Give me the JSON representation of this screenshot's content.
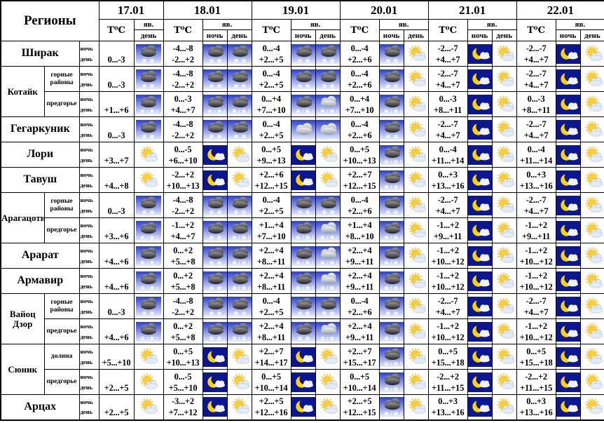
{
  "table": {
    "corner_label": "Регионы",
    "temp_label": "Т⁰С",
    "phenomena_label": "яв.",
    "night_label": "ночь",
    "day_label": "день",
    "colors": {
      "icon_sky_blue_top": "#2a3fd4",
      "icon_sky_blue_bottom": "#e6ecfc",
      "night_navy": "#0b1693",
      "moon_yellow": "#ffd500",
      "sun_yellow": "#ffcf33",
      "border_black": "#000000"
    },
    "dates": [
      {
        "label": "17.01",
        "periods": [
          "день"
        ]
      },
      {
        "label": "18.01",
        "periods": [
          "ночь",
          "день"
        ]
      },
      {
        "label": "19.01",
        "periods": [
          "ночь",
          "день"
        ]
      },
      {
        "label": "20.01",
        "periods": [
          "ночь",
          "день"
        ]
      },
      {
        "label": "21.01",
        "periods": [
          "ночь",
          "день"
        ]
      },
      {
        "label": "22.01",
        "periods": [
          "ночь",
          "день"
        ]
      }
    ],
    "rows": [
      {
        "region": "Ширак",
        "rowspan": 1,
        "subregion": null,
        "cells": [
          {
            "day": "0...-3",
            "day_icon": "snow"
          },
          {
            "night": "-4...-8",
            "day": "-2...+2",
            "night_icon": "snow",
            "day_icon": "snow"
          },
          {
            "night": "0...-4",
            "day": "+2...+5",
            "night_icon": "snow",
            "day_icon": "snow"
          },
          {
            "night": "0...-4",
            "day": "+2...+6",
            "night_icon": "snow",
            "day_icon": "suncloud"
          },
          {
            "night": "-2...-7",
            "day": "+4...+7",
            "night_icon": "moon",
            "day_icon": "suncloud"
          },
          {
            "night": "-2...-7",
            "day": "+4...+7",
            "night_icon": "moon",
            "day_icon": "suncloud"
          }
        ]
      },
      {
        "region": "Котайк",
        "rowspan": 2,
        "subregion": "горные районы",
        "cells": [
          {
            "day": "0...-3",
            "day_icon": "snow"
          },
          {
            "night": "-4...-8",
            "day": "-2...+2",
            "night_icon": "snow",
            "day_icon": "snow"
          },
          {
            "night": "0...-4",
            "day": "+2...+5",
            "night_icon": "snow",
            "day_icon": "snow"
          },
          {
            "night": "0...-4",
            "day": "+2...+6",
            "night_icon": "snow",
            "day_icon": "suncloud"
          },
          {
            "night": "-2...-7",
            "day": "+4...+7",
            "night_icon": "moon",
            "day_icon": "suncloud"
          },
          {
            "night": "-2...-7",
            "day": "+4...+7",
            "night_icon": "moon",
            "day_icon": "suncloud"
          }
        ]
      },
      {
        "region": null,
        "subregion": "предгорье",
        "cells": [
          {
            "day": "+1...+6",
            "day_icon": "sleet"
          },
          {
            "night": "0...-3",
            "day": "+4...+7",
            "night_icon": "sleet",
            "day_icon": "sleet"
          },
          {
            "night": "0...+4",
            "day": "+7...+10",
            "night_icon": "sleet",
            "day_icon": "sleet-light"
          },
          {
            "night": "0...+4",
            "day": "+7...+10",
            "night_icon": "sleet",
            "day_icon": "suncloud"
          },
          {
            "night": "0...-3",
            "day": "+8...+11",
            "night_icon": "moon",
            "day_icon": "suncloud"
          },
          {
            "night": "0...-3",
            "day": "+8...+11",
            "night_icon": "moon",
            "day_icon": "suncloud"
          }
        ]
      },
      {
        "region": "Гегаркуник",
        "rowspan": 1,
        "subregion": null,
        "cells": [
          {
            "day": "0...-3",
            "day_icon": "snow"
          },
          {
            "night": "-4...-8",
            "day": "-2...+2",
            "night_icon": "snow",
            "day_icon": "snow"
          },
          {
            "night": "0...-4",
            "day": "+2...+5",
            "night_icon": "cloudy",
            "day_icon": "cloudy"
          },
          {
            "night": "0...-4",
            "day": "+2...+6",
            "night_icon": "snow",
            "day_icon": "suncloud"
          },
          {
            "night": "-2...-7",
            "day": "+4...+7",
            "night_icon": "moon",
            "day_icon": "suncloud"
          },
          {
            "night": "-2...-7",
            "day": "+4...+7",
            "night_icon": "moon",
            "day_icon": "suncloud"
          }
        ]
      },
      {
        "region": "Лори",
        "rowspan": 1,
        "subregion": null,
        "cells": [
          {
            "day": "+3...+7",
            "day_icon": "suncloud"
          },
          {
            "night": "0...-5",
            "day": "+6...+10",
            "night_icon": "moon",
            "day_icon": "suncloud"
          },
          {
            "night": "0...+5",
            "day": "+9...+13",
            "night_icon": "moon",
            "day_icon": "suncloud"
          },
          {
            "night": "0...+5",
            "day": "+10...+13",
            "night_icon": "sleet",
            "day_icon": "suncloud"
          },
          {
            "night": "0...-4",
            "day": "+11...+14",
            "night_icon": "moon",
            "day_icon": "suncloud"
          },
          {
            "night": "0...-4",
            "day": "+11...+14",
            "night_icon": "moon",
            "day_icon": "suncloud"
          }
        ]
      },
      {
        "region": "Тавуш",
        "rowspan": 1,
        "subregion": null,
        "cells": [
          {
            "day": "+4...+8",
            "day_icon": "suncloud"
          },
          {
            "night": "-2...+2",
            "day": "+10...+13",
            "night_icon": "moon",
            "day_icon": "suncloud"
          },
          {
            "night": "+2...+6",
            "day": "+12...+15",
            "night_icon": "moon",
            "day_icon": "suncloud"
          },
          {
            "night": "+2...+7",
            "day": "+12...+15",
            "night_icon": "sleet",
            "day_icon": "suncloud"
          },
          {
            "night": "0...+3",
            "day": "+13...+16",
            "night_icon": "moon",
            "day_icon": "suncloud"
          },
          {
            "night": "0...+3",
            "day": "+13...+16",
            "night_icon": "moon",
            "day_icon": "suncloud"
          }
        ]
      },
      {
        "region": "Арагацотн",
        "rowspan": 2,
        "subregion": "горные районы",
        "cells": [
          {
            "day": "0...-3",
            "day_icon": "snow"
          },
          {
            "night": "-4...-8",
            "day": "-2...+2",
            "night_icon": "snow",
            "day_icon": "snow"
          },
          {
            "night": "0...-4",
            "day": "+2...+5",
            "night_icon": "snow",
            "day_icon": "snow"
          },
          {
            "night": "0...-4",
            "day": "+2...+6",
            "night_icon": "snow",
            "day_icon": "suncloud"
          },
          {
            "night": "-2...-7",
            "day": "+4...+7",
            "night_icon": "moon",
            "day_icon": "suncloud"
          },
          {
            "night": "-2...-7",
            "day": "+4...+7",
            "night_icon": "moon",
            "day_icon": "suncloud"
          }
        ]
      },
      {
        "region": null,
        "subregion": "предгорье",
        "cells": [
          {
            "day": "+3...+6",
            "day_icon": "sleet"
          },
          {
            "night": "-1...+2",
            "day": "+4...+7",
            "night_icon": "snow",
            "day_icon": "sleet"
          },
          {
            "night": "+1...+4",
            "day": "+7...+10",
            "night_icon": "sleet",
            "day_icon": "sleet-light"
          },
          {
            "night": "+1...+4",
            "day": "+8...+10",
            "night_icon": "sleet",
            "day_icon": "suncloud"
          },
          {
            "night": "-1...+2",
            "day": "+9...+11",
            "night_icon": "moon",
            "day_icon": "suncloud"
          },
          {
            "night": "-1...+2",
            "day": "+9...+11",
            "night_icon": "moon",
            "day_icon": "suncloud"
          }
        ]
      },
      {
        "region": "Арарат",
        "rowspan": 1,
        "subregion": null,
        "cells": [
          {
            "day": "+4...+6",
            "day_icon": "sleet"
          },
          {
            "night": "0...+2",
            "day": "+5...+8",
            "night_icon": "snow",
            "day_icon": "sleet"
          },
          {
            "night": "+2...+4",
            "day": "+8...+11",
            "night_icon": "sleet",
            "day_icon": "sleet-light"
          },
          {
            "night": "+2...+4",
            "day": "+9...+11",
            "night_icon": "sleet",
            "day_icon": "suncloud"
          },
          {
            "night": "-1...+2",
            "day": "+10...+12",
            "night_icon": "moon",
            "day_icon": "suncloud"
          },
          {
            "night": "-1...+2",
            "day": "+10...+12",
            "night_icon": "moon",
            "day_icon": "suncloud"
          }
        ]
      },
      {
        "region": "Армавир",
        "rowspan": 1,
        "subregion": null,
        "cells": [
          {
            "day": "+4...+6",
            "day_icon": "sleet"
          },
          {
            "night": "0...+2",
            "day": "+5...+8",
            "night_icon": "snow",
            "day_icon": "sleet"
          },
          {
            "night": "+2...+4",
            "day": "+8...+11",
            "night_icon": "sleet",
            "day_icon": "sleet-light"
          },
          {
            "night": "+2...+4",
            "day": "+9...+11",
            "night_icon": "sleet",
            "day_icon": "suncloud"
          },
          {
            "night": "-1...+2",
            "day": "+10...+12",
            "night_icon": "moon",
            "day_icon": "suncloud"
          },
          {
            "night": "-1...+2",
            "day": "+10...+12",
            "night_icon": "moon",
            "day_icon": "suncloud"
          }
        ]
      },
      {
        "region": "Вайоц Дзор",
        "rowspan": 2,
        "subregion": "горные районы",
        "cells": [
          {
            "day": "0...-3",
            "day_icon": "snow"
          },
          {
            "night": "-4...-8",
            "day": "-2...+2",
            "night_icon": "snow",
            "day_icon": "snow"
          },
          {
            "night": "0...-4",
            "day": "+2...+5",
            "night_icon": "snow",
            "day_icon": "snow"
          },
          {
            "night": "0...-4",
            "day": "+2...+6",
            "night_icon": "snow",
            "day_icon": "suncloud"
          },
          {
            "night": "-2...-7",
            "day": "+4...+7",
            "night_icon": "moon",
            "day_icon": "suncloud"
          },
          {
            "night": "-2...-7",
            "day": "+4...+7",
            "night_icon": "moon",
            "day_icon": "suncloud"
          }
        ]
      },
      {
        "region": null,
        "subregion": "предгорье",
        "cells": [
          {
            "day": "+4...+6",
            "day_icon": "sleet"
          },
          {
            "night": "0...+2",
            "day": "+5...+8",
            "night_icon": "snow",
            "day_icon": "sleet"
          },
          {
            "night": "+2...+4",
            "day": "+8...+11",
            "night_icon": "snow",
            "day_icon": "sleet-light"
          },
          {
            "night": "+2...+4",
            "day": "+9...+11",
            "night_icon": "sleet",
            "day_icon": "suncloud"
          },
          {
            "night": "-1...+2",
            "day": "+10...+12",
            "night_icon": "moon",
            "day_icon": "suncloud"
          },
          {
            "night": "-1...+2",
            "day": "+10...+12",
            "night_icon": "moon",
            "day_icon": "suncloud"
          }
        ]
      },
      {
        "region": "Сюник",
        "rowspan": 2,
        "subregion": "долина",
        "cells": [
          {
            "day": "+5...+10",
            "day_icon": "suncloud"
          },
          {
            "night": "0...+5",
            "day": "+10...+13",
            "night_icon": "moon",
            "day_icon": "suncloud"
          },
          {
            "night": "+2...+7",
            "day": "+14...+17",
            "night_icon": "moon",
            "day_icon": "suncloud"
          },
          {
            "night": "+2...+7",
            "day": "+15...+17",
            "night_icon": "sleet",
            "day_icon": "suncloud"
          },
          {
            "night": "0...+5",
            "day": "+15...+18",
            "night_icon": "moon",
            "day_icon": "suncloud"
          },
          {
            "night": "0...+5",
            "day": "+15...+18",
            "night_icon": "moon",
            "day_icon": "suncloud"
          }
        ]
      },
      {
        "region": null,
        "subregion": "предгорье",
        "cells": [
          {
            "day": "+2...+5",
            "day_icon": "suncloud"
          },
          {
            "night": "0...-5",
            "day": "+5...+10",
            "night_icon": "moon",
            "day_icon": "suncloud"
          },
          {
            "night": "0...+5",
            "day": "+10...+14",
            "night_icon": "moon",
            "day_icon": "suncloud"
          },
          {
            "night": "0...+5",
            "day": "+10...+14",
            "night_icon": "sleet",
            "day_icon": "suncloud"
          },
          {
            "night": "-2...+2",
            "day": "+11...+15",
            "night_icon": "moon",
            "day_icon": "suncloud"
          },
          {
            "night": "-2...+2",
            "day": "+11...+15",
            "night_icon": "moon",
            "day_icon": "suncloud"
          }
        ]
      },
      {
        "region": "Арцах",
        "rowspan": 1,
        "subregion": null,
        "cells": [
          {
            "day": "+2...+5",
            "day_icon": "suncloud"
          },
          {
            "night": "-3...+2",
            "day": "+7...+12",
            "night_icon": "moon",
            "day_icon": "suncloud"
          },
          {
            "night": "+2...+5",
            "day": "+12...+16",
            "night_icon": "moon",
            "day_icon": "suncloud"
          },
          {
            "night": "+2...+5",
            "day": "+12...+15",
            "night_icon": "sleet",
            "day_icon": "suncloud"
          },
          {
            "night": "0...+3",
            "day": "+13...+16",
            "night_icon": "moon",
            "day_icon": "suncloud"
          },
          {
            "night": "0...+3",
            "day": "+13...+16",
            "night_icon": "moon",
            "day_icon": "suncloud"
          }
        ]
      }
    ]
  }
}
